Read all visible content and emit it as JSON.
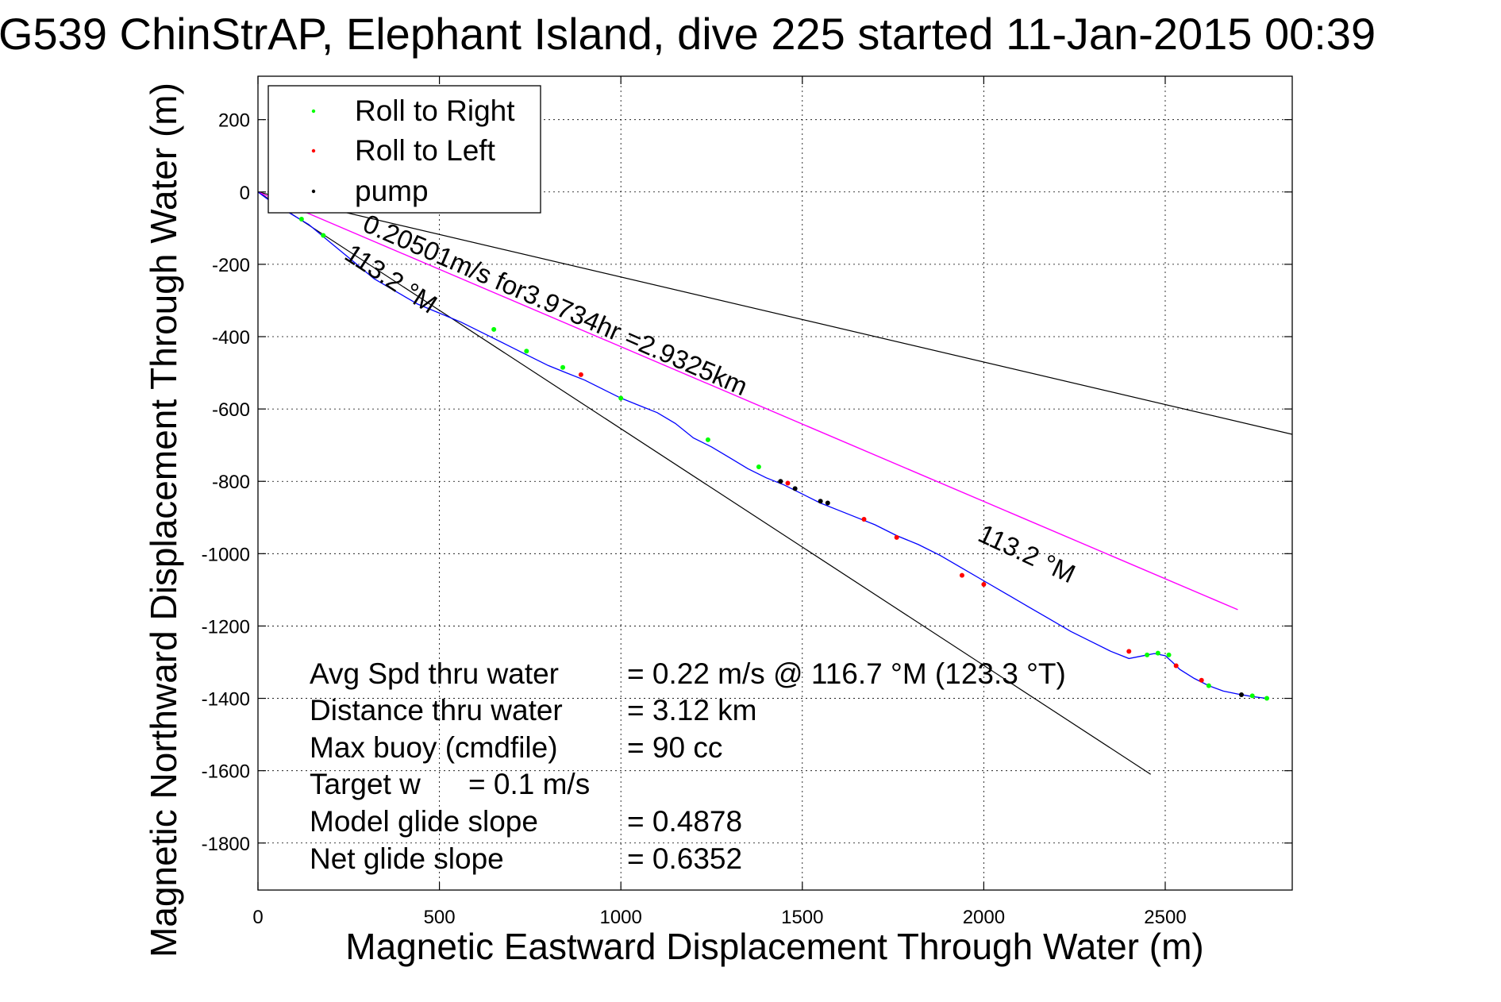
{
  "chart_data": {
    "type": "scatter",
    "title": "G539 ChinStrAP, Elephant Island, dive 225 started 11-Jan-2015 00:39",
    "xlabel": "Magnetic Eastward Displacement Through Water (m)",
    "ylabel": "Magnetic Northward Displacement Through Water (m)",
    "xlim": [
      0,
      2850
    ],
    "ylim": [
      -1930,
      320
    ],
    "x_ticks": [
      0,
      500,
      1000,
      1500,
      2000,
      2500
    ],
    "y_ticks": [
      200,
      0,
      -200,
      -400,
      -600,
      -800,
      -1000,
      -1200,
      -1400,
      -1600,
      -1800
    ],
    "grid": true,
    "legend": {
      "position": "top-left",
      "entries": [
        {
          "label": "Roll to Right",
          "color": "#00ff00"
        },
        {
          "label": "Roll to Left",
          "color": "#ff0000"
        },
        {
          "label": "pump",
          "color": "#000000"
        }
      ]
    },
    "colors": {
      "track": "#0000ff",
      "current": "#ff00ff",
      "bounds": "#000000"
    },
    "track": {
      "x": [
        0,
        40,
        90,
        140,
        200,
        260,
        320,
        380,
        440,
        500,
        560,
        620,
        680,
        740,
        800,
        850,
        900,
        950,
        1000,
        1050,
        1100,
        1150,
        1200,
        1250,
        1300,
        1350,
        1400,
        1450,
        1500,
        1550,
        1600,
        1650,
        1700,
        1760,
        1820,
        1880,
        1940,
        2000,
        2060,
        2120,
        2180,
        2240,
        2300,
        2350,
        2400,
        2440,
        2470,
        2500,
        2520,
        2540,
        2580,
        2620,
        2660,
        2700,
        2740,
        2780
      ],
      "y": [
        0,
        -30,
        -60,
        -90,
        -140,
        -190,
        -240,
        -275,
        -310,
        -335,
        -360,
        -390,
        -420,
        -450,
        -480,
        -500,
        -520,
        -545,
        -570,
        -590,
        -610,
        -640,
        -680,
        -705,
        -735,
        -765,
        -790,
        -810,
        -835,
        -860,
        -880,
        -900,
        -920,
        -950,
        -975,
        -1005,
        -1040,
        -1075,
        -1110,
        -1145,
        -1180,
        -1215,
        -1245,
        -1270,
        -1290,
        -1282,
        -1276,
        -1282,
        -1300,
        -1320,
        -1345,
        -1365,
        -1380,
        -1388,
        -1395,
        -1400
      ]
    },
    "roll_right_points": [
      [
        120,
        -75
      ],
      [
        180,
        -120
      ],
      [
        650,
        -380
      ],
      [
        740,
        -440
      ],
      [
        840,
        -485
      ],
      [
        1000,
        -570
      ],
      [
        1240,
        -685
      ],
      [
        1380,
        -760
      ],
      [
        2450,
        -1280
      ],
      [
        2480,
        -1275
      ],
      [
        2510,
        -1280
      ],
      [
        2620,
        -1365
      ],
      [
        2740,
        -1393
      ],
      [
        2780,
        -1400
      ]
    ],
    "roll_left_points": [
      [
        890,
        -505
      ],
      [
        1460,
        -805
      ],
      [
        1670,
        -905
      ],
      [
        1760,
        -955
      ],
      [
        1940,
        -1060
      ],
      [
        2000,
        -1085
      ],
      [
        2400,
        -1270
      ],
      [
        2530,
        -1310
      ],
      [
        2600,
        -1350
      ]
    ],
    "pump_points": [
      [
        1440,
        -800
      ],
      [
        1480,
        -820
      ],
      [
        1550,
        -855
      ],
      [
        1570,
        -860
      ],
      [
        2710,
        -1390
      ]
    ],
    "current_line": {
      "x": [
        0,
        2700
      ],
      "y": [
        0,
        -1155
      ]
    },
    "heading_bounds": [
      {
        "x": [
          0,
          2850
        ],
        "y": [
          0,
          -670
        ]
      },
      {
        "x": [
          0,
          2460
        ],
        "y": [
          0,
          -1610
        ]
      }
    ],
    "annotations": {
      "current": "0.20501m/s for3.9734hr =2.9325km",
      "heading_a": "113.2 °M",
      "heading_b": "113.2 °M"
    },
    "stats": [
      {
        "label": "Avg Spd thru water",
        "value": "=  0.22 m/s @ 116.7 °M (123.3 °T)"
      },
      {
        "label": "Distance thru water",
        "value": "=  3.12 km"
      },
      {
        "label": "Max buoy (cmdfile)",
        "value": "= 90 cc"
      },
      {
        "label": "Target w",
        "value": "= 0.1 m/s"
      },
      {
        "label": "Model glide slope",
        "value": "= 0.4878"
      },
      {
        "label": "Net glide slope",
        "value": "= 0.6352"
      }
    ]
  }
}
